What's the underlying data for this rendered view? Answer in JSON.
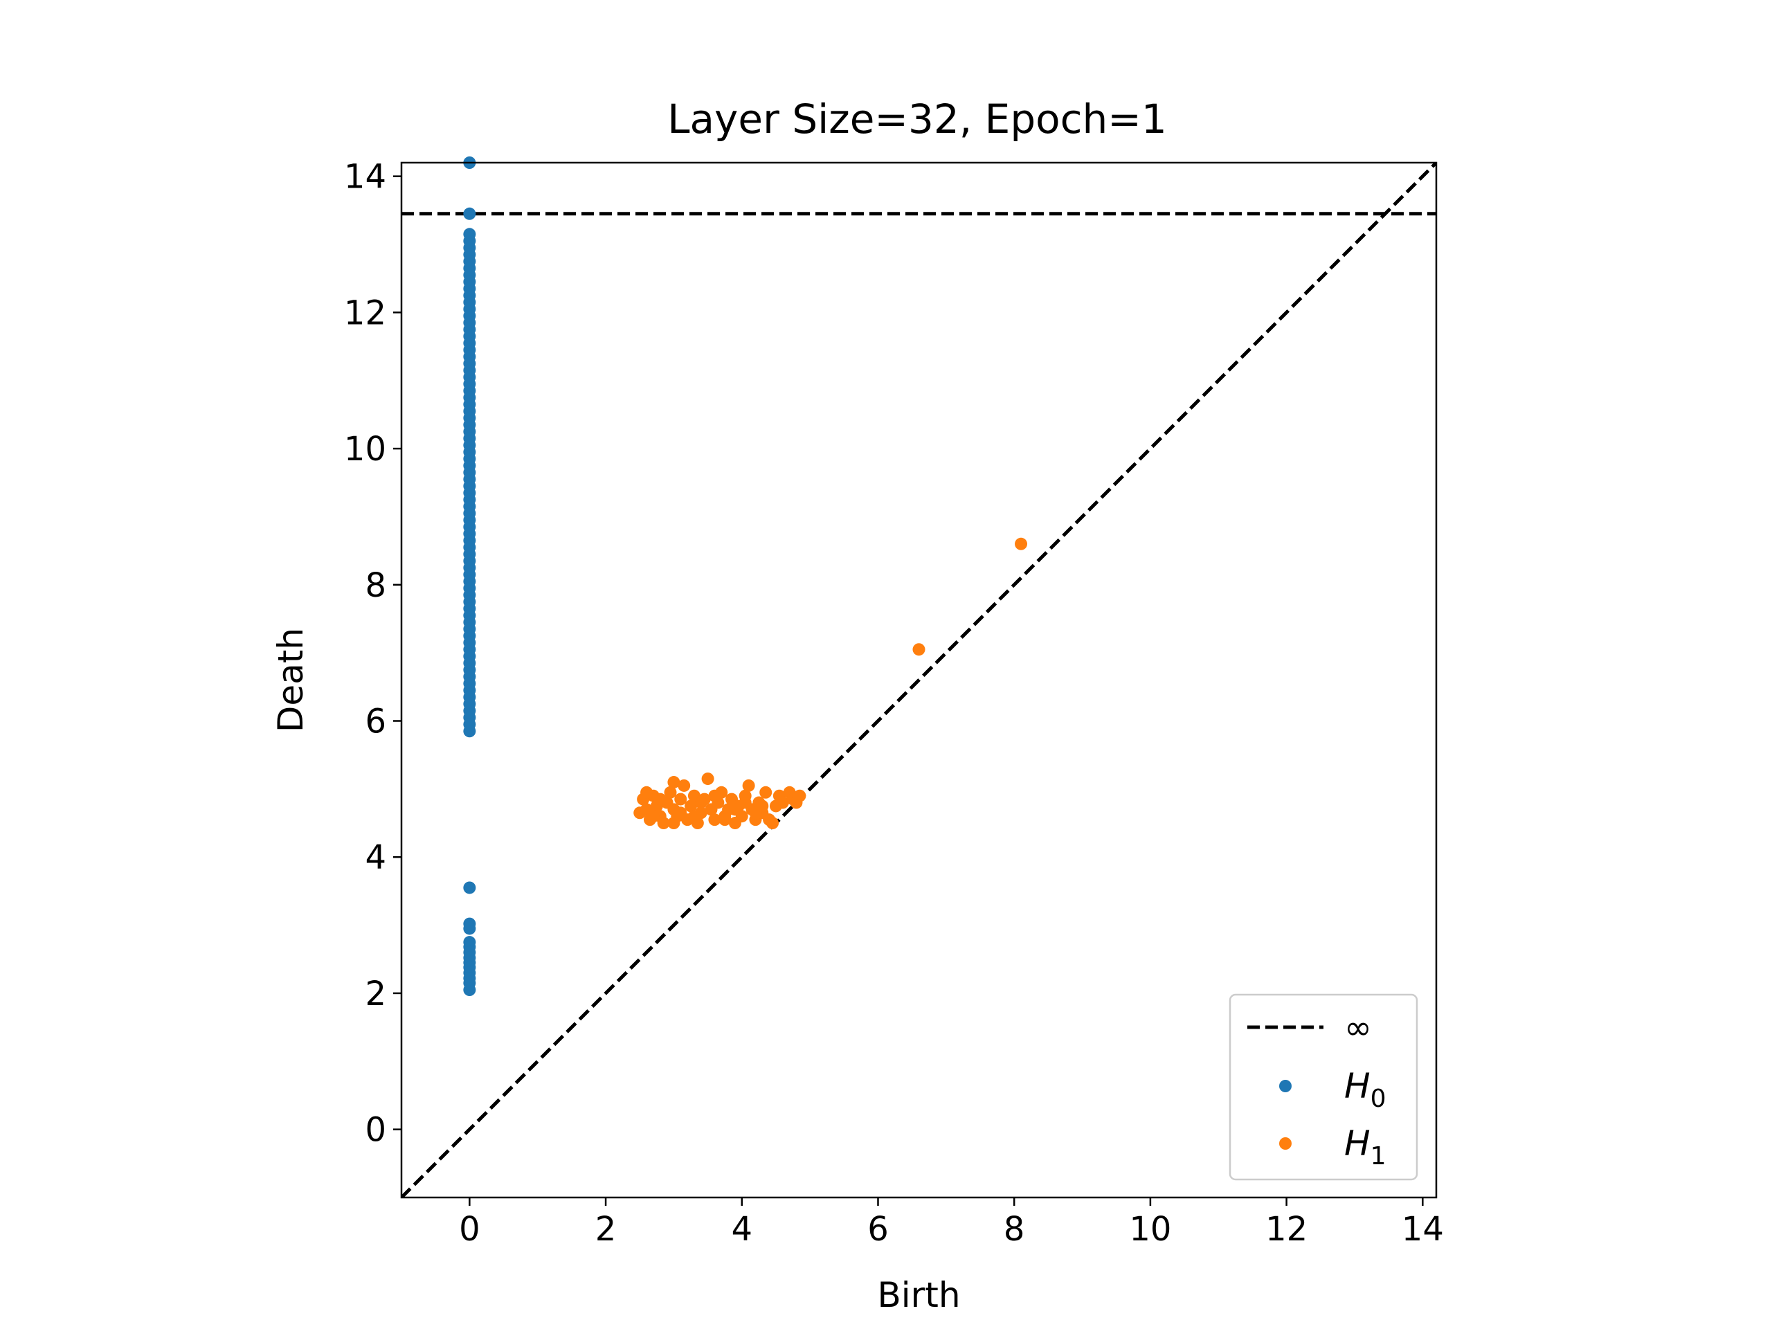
{
  "chart_data": {
    "type": "scatter",
    "title": "Layer Size=32, Epoch=1",
    "xlabel": "Birth",
    "ylabel": "Death",
    "xlim": [
      -1.0,
      14.2
    ],
    "ylim": [
      -1.0,
      14.2
    ],
    "xticks": [
      0,
      2,
      4,
      6,
      8,
      10,
      12,
      14
    ],
    "yticks": [
      0,
      2,
      4,
      6,
      8,
      10,
      12,
      14
    ],
    "grid": false,
    "legend_position": "lower-right",
    "diagonal": true,
    "infinity_line": {
      "label": "∞",
      "y": 13.45,
      "color": "#000000",
      "style": "dashed"
    },
    "series": [
      {
        "name": "H0",
        "label_main": "H",
        "label_sub": "0",
        "color": "#1f77b4",
        "points": [
          [
            0,
            14.2
          ],
          [
            0,
            13.45
          ],
          [
            0,
            13.15
          ],
          [
            0,
            13.05
          ],
          [
            0,
            12.95
          ],
          [
            0,
            12.85
          ],
          [
            0,
            12.75
          ],
          [
            0,
            12.65
          ],
          [
            0,
            12.55
          ],
          [
            0,
            12.45
          ],
          [
            0,
            12.35
          ],
          [
            0,
            12.25
          ],
          [
            0,
            12.15
          ],
          [
            0,
            12.05
          ],
          [
            0,
            11.95
          ],
          [
            0,
            11.85
          ],
          [
            0,
            11.75
          ],
          [
            0,
            11.65
          ],
          [
            0,
            11.55
          ],
          [
            0,
            11.45
          ],
          [
            0,
            11.35
          ],
          [
            0,
            11.25
          ],
          [
            0,
            11.15
          ],
          [
            0,
            11.05
          ],
          [
            0,
            10.95
          ],
          [
            0,
            10.85
          ],
          [
            0,
            10.75
          ],
          [
            0,
            10.65
          ],
          [
            0,
            10.55
          ],
          [
            0,
            10.45
          ],
          [
            0,
            10.35
          ],
          [
            0,
            10.25
          ],
          [
            0,
            10.15
          ],
          [
            0,
            10.05
          ],
          [
            0,
            9.95
          ],
          [
            0,
            9.85
          ],
          [
            0,
            9.75
          ],
          [
            0,
            9.65
          ],
          [
            0,
            9.55
          ],
          [
            0,
            9.45
          ],
          [
            0,
            9.35
          ],
          [
            0,
            9.25
          ],
          [
            0,
            9.15
          ],
          [
            0,
            9.05
          ],
          [
            0,
            8.95
          ],
          [
            0,
            8.85
          ],
          [
            0,
            8.75
          ],
          [
            0,
            8.65
          ],
          [
            0,
            8.55
          ],
          [
            0,
            8.45
          ],
          [
            0,
            8.35
          ],
          [
            0,
            8.25
          ],
          [
            0,
            8.15
          ],
          [
            0,
            8.05
          ],
          [
            0,
            7.95
          ],
          [
            0,
            7.85
          ],
          [
            0,
            7.75
          ],
          [
            0,
            7.65
          ],
          [
            0,
            7.55
          ],
          [
            0,
            7.45
          ],
          [
            0,
            7.35
          ],
          [
            0,
            7.25
          ],
          [
            0,
            7.15
          ],
          [
            0,
            7.05
          ],
          [
            0,
            6.95
          ],
          [
            0,
            6.85
          ],
          [
            0,
            6.75
          ],
          [
            0,
            6.65
          ],
          [
            0,
            6.55
          ],
          [
            0,
            6.45
          ],
          [
            0,
            6.35
          ],
          [
            0,
            6.25
          ],
          [
            0,
            6.15
          ],
          [
            0,
            6.05
          ],
          [
            0,
            5.95
          ],
          [
            0,
            5.85
          ],
          [
            0,
            3.55
          ],
          [
            0,
            3.02
          ],
          [
            0,
            2.95
          ],
          [
            0,
            2.75
          ],
          [
            0,
            2.68
          ],
          [
            0,
            2.6
          ],
          [
            0,
            2.52
          ],
          [
            0,
            2.45
          ],
          [
            0,
            2.38
          ],
          [
            0,
            2.3
          ],
          [
            0,
            2.22
          ],
          [
            0,
            2.15
          ],
          [
            0,
            2.05
          ]
        ]
      },
      {
        "name": "H1",
        "label_main": "H",
        "label_sub": "1",
        "color": "#ff7f0e",
        "points": [
          [
            8.1,
            8.6
          ],
          [
            6.6,
            7.05
          ],
          [
            2.5,
            4.65
          ],
          [
            2.55,
            4.85
          ],
          [
            2.6,
            4.7
          ],
          [
            2.65,
            4.55
          ],
          [
            2.7,
            4.9
          ],
          [
            2.75,
            4.75
          ],
          [
            2.8,
            4.6
          ],
          [
            2.85,
            4.5
          ],
          [
            2.9,
            4.8
          ],
          [
            2.95,
            4.95
          ],
          [
            3.0,
            5.1
          ],
          [
            3.0,
            4.7
          ],
          [
            3.05,
            4.6
          ],
          [
            3.1,
            4.85
          ],
          [
            3.15,
            5.05
          ],
          [
            3.2,
            4.55
          ],
          [
            3.25,
            4.75
          ],
          [
            3.3,
            4.9
          ],
          [
            3.35,
            4.5
          ],
          [
            3.4,
            4.65
          ],
          [
            3.45,
            4.85
          ],
          [
            3.5,
            5.15
          ],
          [
            3.55,
            4.7
          ],
          [
            3.6,
            4.55
          ],
          [
            3.65,
            4.8
          ],
          [
            3.7,
            4.95
          ],
          [
            3.75,
            4.6
          ],
          [
            3.8,
            4.7
          ],
          [
            3.85,
            4.85
          ],
          [
            3.9,
            4.5
          ],
          [
            3.95,
            4.75
          ],
          [
            4.0,
            4.6
          ],
          [
            4.05,
            4.9
          ],
          [
            4.1,
            5.05
          ],
          [
            4.15,
            4.7
          ],
          [
            4.2,
            4.55
          ],
          [
            4.25,
            4.8
          ],
          [
            4.3,
            4.65
          ],
          [
            4.35,
            4.95
          ],
          [
            4.4,
            4.55
          ],
          [
            4.45,
            4.5
          ],
          [
            4.5,
            4.75
          ],
          [
            4.55,
            4.9
          ],
          [
            4.6,
            4.8
          ],
          [
            4.7,
            4.95
          ],
          [
            4.75,
            4.85
          ],
          [
            4.8,
            4.8
          ],
          [
            4.85,
            4.9
          ],
          [
            2.6,
            4.95
          ],
          [
            2.8,
            4.85
          ],
          [
            3.1,
            4.65
          ],
          [
            3.3,
            4.6
          ],
          [
            3.6,
            4.9
          ],
          [
            3.9,
            4.7
          ],
          [
            4.2,
            4.65
          ],
          [
            2.7,
            4.6
          ],
          [
            3.0,
            4.5
          ],
          [
            3.4,
            4.8
          ],
          [
            3.75,
            4.55
          ],
          [
            4.05,
            4.8
          ],
          [
            4.3,
            4.75
          ]
        ]
      }
    ]
  }
}
